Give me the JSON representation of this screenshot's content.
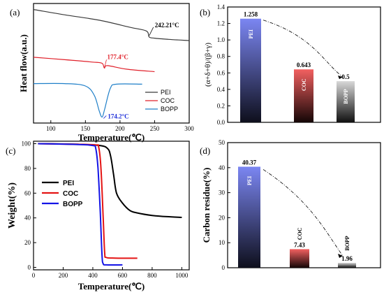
{
  "colors": {
    "pei": "#3a3a3a",
    "coc": "#e0202a",
    "bopp": "#1f7fc8",
    "bopp_c": "#1a2bd8",
    "frame": "#000000"
  },
  "chart_data": [
    {
      "panel": "(a)",
      "type": "line",
      "xlabel": "Temperature(℃)",
      "ylabel": "Heat flow(a.u.)",
      "xlim": [
        75,
        300
      ],
      "xticks": [
        "100",
        "150",
        "200",
        "250",
        "300"
      ],
      "series": [
        {
          "name": "PEI",
          "points": [
            [
              75,
              0.95
            ],
            [
              120,
              0.905
            ],
            [
              170,
              0.86
            ],
            [
              215,
              0.8
            ],
            [
              238,
              0.77
            ],
            [
              242.21,
              0.72
            ],
            [
              250,
              0.71
            ],
            [
              270,
              0.7
            ],
            [
              300,
              0.69
            ]
          ]
        },
        {
          "name": "COC",
          "points": [
            [
              75,
              0.55
            ],
            [
              120,
              0.53
            ],
            [
              160,
              0.51
            ],
            [
              174,
              0.5
            ],
            [
              177.4,
              0.46
            ],
            [
              182,
              0.48
            ],
            [
              210,
              0.45
            ],
            [
              250,
              0.43
            ]
          ]
        },
        {
          "name": "BOPP",
          "points": [
            [
              75,
              0.33
            ],
            [
              120,
              0.33
            ],
            [
              150,
              0.31
            ],
            [
              163,
              0.23
            ],
            [
              170,
              0.1
            ],
            [
              174.2,
              0.05
            ],
            [
              178,
              0.12
            ],
            [
              186,
              0.29
            ],
            [
              195,
              0.325
            ],
            [
              232,
              0.325
            ]
          ]
        }
      ],
      "annotations": [
        {
          "text": "242.21°C",
          "x": 242.21,
          "series": "PEI"
        },
        {
          "text": "177.4°C",
          "x": 177.4,
          "series": "COC"
        },
        {
          "text": "174.2°C",
          "x": 174.2,
          "series": "BOPP"
        }
      ],
      "legend": [
        "PEI",
        "COC",
        "BOPP"
      ],
      "legend_position": "bottom-right"
    },
    {
      "panel": "(b)",
      "type": "bar",
      "ylabel": "(α+δ+θ)/(β+γ)",
      "ylim": [
        0,
        1.4
      ],
      "yticks": [
        "0.0",
        "0.2",
        "0.4",
        "0.6",
        "0.8",
        "1.0",
        "1.2",
        "1.4"
      ],
      "categories": [
        "PEI",
        "COC",
        "BOPP"
      ],
      "values": [
        1.258,
        0.643,
        0.5
      ],
      "value_labels": [
        "1.258",
        "0.643",
        "0.5"
      ]
    },
    {
      "panel": "(c)",
      "type": "line",
      "xlabel": "Temperature(℃)",
      "ylabel": "Weight(%)",
      "xlim": [
        0,
        1050
      ],
      "ylim": [
        -2,
        102
      ],
      "xticks": [
        "0",
        "200",
        "400",
        "600",
        "800",
        "1000"
      ],
      "yticks": [
        "0",
        "20",
        "40",
        "60",
        "80",
        "100"
      ],
      "series": [
        {
          "name": "PEI",
          "points": [
            [
              30,
              100
            ],
            [
              300,
              99.5
            ],
            [
              450,
              98.5
            ],
            [
              500,
              96
            ],
            [
              520,
              90
            ],
            [
              540,
              75
            ],
            [
              560,
              60
            ],
            [
              600,
              52
            ],
            [
              650,
              46
            ],
            [
              700,
              44
            ],
            [
              800,
              42
            ],
            [
              900,
              41
            ],
            [
              1000,
              40.4
            ]
          ]
        },
        {
          "name": "COC",
          "points": [
            [
              30,
              100
            ],
            [
              300,
              99.5
            ],
            [
              420,
              99
            ],
            [
              440,
              97
            ],
            [
              455,
              80
            ],
            [
              470,
              40
            ],
            [
              480,
              12
            ],
            [
              490,
              8
            ],
            [
              550,
              7.5
            ],
            [
              700,
              7.4
            ]
          ]
        },
        {
          "name": "BOPP",
          "points": [
            [
              30,
              100
            ],
            [
              300,
              99.3
            ],
            [
              400,
              98.5
            ],
            [
              420,
              96
            ],
            [
              435,
              80
            ],
            [
              450,
              45
            ],
            [
              462,
              10
            ],
            [
              470,
              3
            ],
            [
              490,
              2
            ],
            [
              600,
              2
            ]
          ]
        }
      ],
      "legend": [
        "PEI",
        "COC",
        "BOPP"
      ],
      "legend_position": "middle-left"
    },
    {
      "panel": "(d)",
      "type": "bar",
      "ylabel": "Carbon residue(%)",
      "ylim": [
        0,
        50
      ],
      "yticks": [
        "0",
        "10",
        "20",
        "30",
        "40",
        "50"
      ],
      "categories": [
        "PEI",
        "COC",
        "BOPP"
      ],
      "values": [
        40.37,
        7.43,
        1.96
      ],
      "value_labels": [
        "40.37",
        "7.43",
        "1.96"
      ]
    }
  ]
}
